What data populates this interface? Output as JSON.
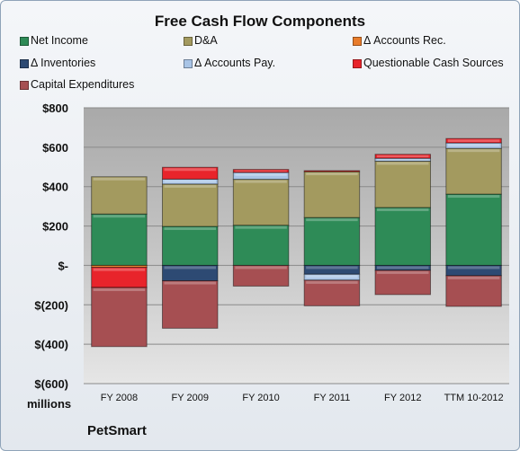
{
  "title": "Free Cash Flow Components",
  "units_label": "millions",
  "brand": "PetSmart",
  "legend": [
    {
      "label": "Net Income",
      "color": "#2e8b57"
    },
    {
      "label": "D&A",
      "color": "#a39a5f"
    },
    {
      "label": "Δ Accounts Rec.",
      "color": "#e87c2b"
    },
    {
      "label": "Δ Inventories",
      "color": "#2d4a73"
    },
    {
      "label": "Δ Accounts Pay.",
      "color": "#a9c4e6"
    },
    {
      "label": "Questionable Cash Sources",
      "color": "#e8242b"
    },
    {
      "label": "Capital Expenditures",
      "color": "#a64f52"
    }
  ],
  "chart_data": {
    "type": "bar",
    "stacked": true,
    "categories": [
      "FY 2008",
      "FY 2009",
      "FY 2010",
      "FY 2011",
      "FY 2012",
      "TTM 10-2012"
    ],
    "ylim": [
      -600,
      800
    ],
    "yticks": [
      800,
      600,
      400,
      200,
      0,
      -200,
      -400,
      -600
    ],
    "ytick_labels": [
      "$800",
      "$600",
      "$400",
      "$200",
      "$-",
      "$(200)",
      "$(400)",
      "$(600)"
    ],
    "grid": true,
    "legend_position": "top",
    "series": [
      {
        "name": "Net Income",
        "values": [
          261,
          198,
          204,
          243,
          294,
          362
        ]
      },
      {
        "name": "D&A",
        "values": [
          189,
          215,
          233,
          233,
          235,
          232
        ]
      },
      {
        "name": "Δ Accounts Rec.",
        "values": [
          -10,
          0,
          0,
          0,
          0,
          0
        ]
      },
      {
        "name": "Δ Inventories",
        "values": [
          0,
          -78,
          0,
          -45,
          -25,
          -52
        ]
      },
      {
        "name": "Δ Accounts Pay.",
        "values": [
          0,
          25,
          35,
          -30,
          15,
          28
        ]
      },
      {
        "name": "Questionable Cash Sources",
        "values": [
          -102,
          60,
          15,
          5,
          20,
          22
        ]
      },
      {
        "name": "Capital Expenditures",
        "values": [
          -300,
          -241,
          -105,
          -130,
          -123,
          -156
        ]
      }
    ]
  }
}
